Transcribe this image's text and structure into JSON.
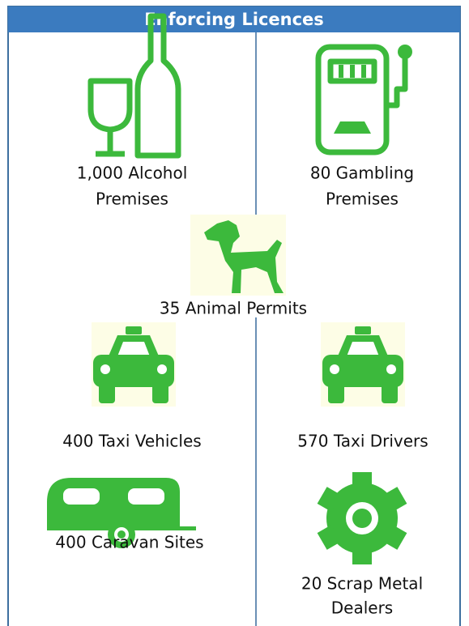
{
  "title": "Enforcing Licences",
  "items": [
    {
      "lines": [
        "1,000 Alcohol",
        "Premises"
      ]
    },
    {
      "lines": [
        "80 Gambling",
        "Premises"
      ]
    },
    {
      "lines": [
        "35 Animal Permits"
      ]
    },
    {
      "lines": [
        "400 Taxi Vehicles"
      ]
    },
    {
      "lines": [
        "570 Taxi Drivers"
      ]
    },
    {
      "lines": [
        "400 Caravan Sites"
      ]
    },
    {
      "lines": [
        "20 Scrap Metal",
        "Dealers"
      ]
    }
  ]
}
